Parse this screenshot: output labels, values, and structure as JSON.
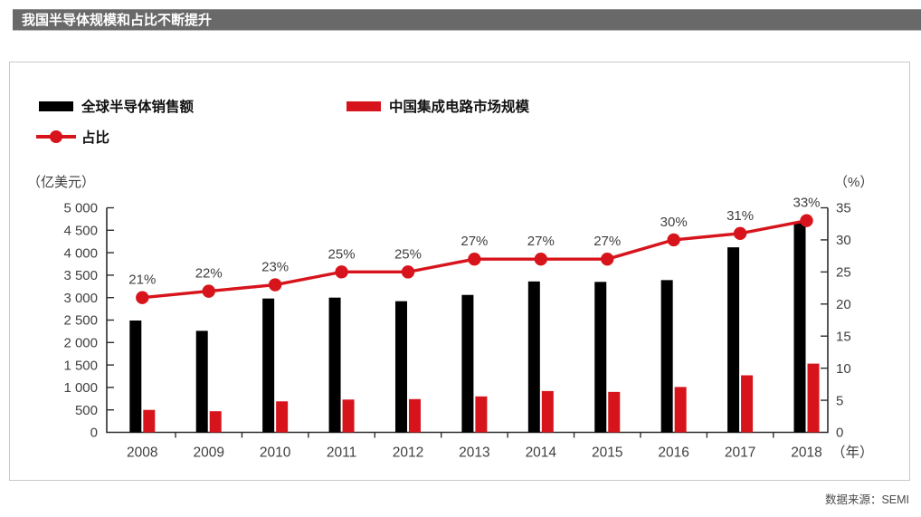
{
  "header": {
    "title": "我国半导体规模和占比不断提升"
  },
  "legend": {
    "items": [
      {
        "label": "全球半导体销售额",
        "marker": "black-bar-swatch",
        "color": "#000000"
      },
      {
        "label": "中国集成电路市场规模",
        "marker": "red-bar-swatch",
        "color": "#d7141c"
      },
      {
        "label": "占比",
        "marker": "red-line-dot-swatch",
        "color": "#d7141c"
      }
    ]
  },
  "footer": {
    "source": "数据来源：SEMI"
  },
  "colors": {
    "accent_red": "#d7141c",
    "bar_black": "#000000",
    "title_bar_bg": "#696969",
    "axis_line": "#2e2e2e",
    "label_text": "#3f3f3f",
    "frame_border": "#c9c9c9"
  },
  "chart_data": {
    "type": "bar",
    "subtype": "grouped-bars-with-right-axis-line",
    "title": "我国半导体规模和占比不断提升",
    "categories": [
      "2008",
      "2009",
      "2010",
      "2011",
      "2012",
      "2013",
      "2014",
      "2015",
      "2016",
      "2017",
      "2018"
    ],
    "x_suffix": "（年）",
    "series": [
      {
        "name": "全球半导体销售额",
        "type": "bar",
        "axis": "left",
        "color": "#000000",
        "values": [
          2490,
          2260,
          2980,
          3000,
          2920,
          3060,
          3360,
          3350,
          3390,
          4120,
          4690
        ]
      },
      {
        "name": "中国集成电路市场规模",
        "type": "bar",
        "axis": "left",
        "color": "#d7141c",
        "values": [
          500,
          470,
          690,
          730,
          740,
          800,
          920,
          900,
          1010,
          1270,
          1530
        ]
      },
      {
        "name": "占比",
        "type": "line",
        "axis": "right",
        "color": "#d7141c",
        "values": [
          21,
          22,
          23,
          25,
          25,
          27,
          27,
          27,
          30,
          31,
          33
        ],
        "point_labels": [
          "21%",
          "22%",
          "23%",
          "25%",
          "25%",
          "27%",
          "27%",
          "27%",
          "30%",
          "31%",
          "33%"
        ]
      }
    ],
    "left_axis": {
      "title": "（亿美元）",
      "min": 0,
      "max": 5000,
      "step": 500,
      "tick_labels": [
        "0",
        "500",
        "1 000",
        "1 500",
        "2 000",
        "2 500",
        "3 000",
        "3 500",
        "4 000",
        "4 500",
        "5 000"
      ]
    },
    "right_axis": {
      "title": "（%）",
      "min": 0,
      "max": 35,
      "step": 5,
      "tick_labels": [
        "0",
        "5",
        "10",
        "15",
        "20",
        "25",
        "30",
        "35"
      ]
    },
    "grid": false,
    "legend_position": "top-left"
  }
}
